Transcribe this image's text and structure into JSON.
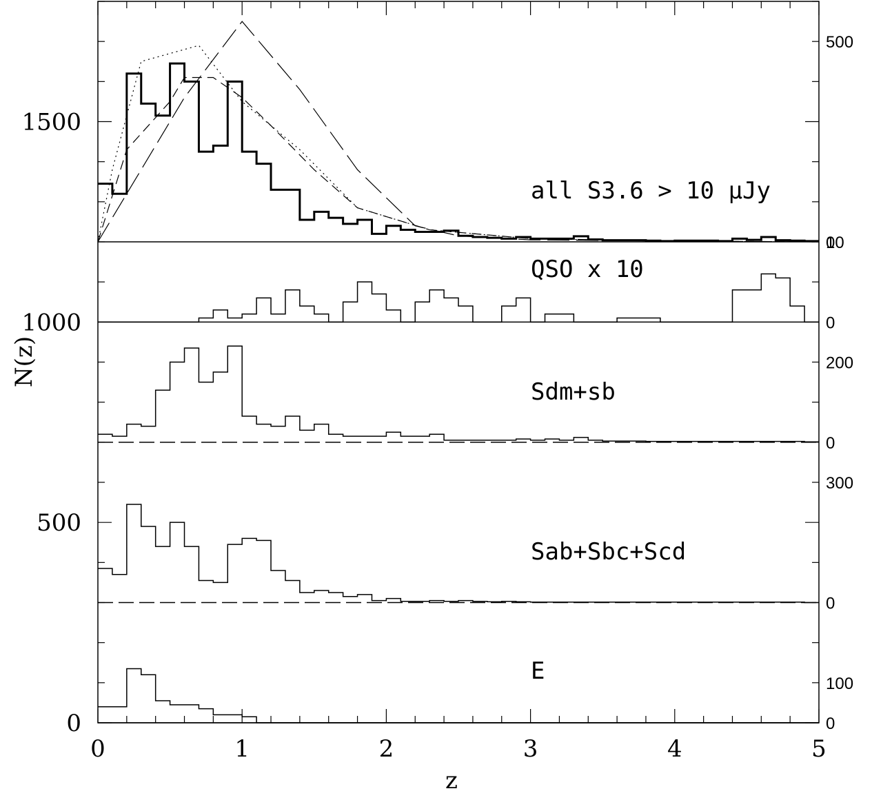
{
  "chart_data": {
    "type": "line",
    "xlabel": "z",
    "ylabel": "N(z)",
    "xlim": [
      0,
      5
    ],
    "ylim": [
      0,
      1800
    ],
    "x_ticks": [
      "0",
      "1",
      "2",
      "3",
      "4",
      "5"
    ],
    "y_ticks": [
      {
        "value": 0,
        "label": "0"
      },
      {
        "value": 500,
        "label": "500"
      },
      {
        "value": 1000,
        "label": "1000"
      },
      {
        "value": 1500,
        "label": "1500"
      }
    ],
    "bin_edges": [
      0,
      0.1,
      0.2,
      0.3,
      0.4,
      0.5,
      0.6,
      0.7,
      0.8,
      0.9,
      1.0,
      1.1,
      1.2,
      1.3,
      1.4,
      1.5,
      1.6,
      1.7,
      1.8,
      1.9,
      2.0,
      2.1,
      2.2,
      2.3,
      2.4,
      2.5,
      2.6,
      2.7,
      2.8,
      2.9,
      3.0,
      3.1,
      3.2,
      3.3,
      3.4,
      3.5,
      3.6,
      3.7,
      3.8,
      3.9,
      4.0,
      4.1,
      4.2,
      4.3,
      4.4,
      4.5,
      4.6,
      4.7,
      4.8,
      4.9,
      5.0
    ],
    "panels": [
      {
        "name": "all S3.6 > 10 μJy",
        "label": "all S3.6 > 10 μJy",
        "baseline": 1200,
        "right_ticks": [
          {
            "value": 0,
            "label": "0"
          },
          {
            "value": 500,
            "label": "500"
          }
        ],
        "histogram": [
          145,
          120,
          420,
          345,
          315,
          445,
          400,
          225,
          240,
          400,
          225,
          195,
          130,
          130,
          55,
          75,
          60,
          45,
          55,
          20,
          40,
          30,
          25,
          25,
          28,
          15,
          12,
          10,
          8,
          12,
          8,
          8,
          8,
          14,
          6,
          4,
          4,
          4,
          3,
          2,
          3,
          3,
          3,
          2,
          8,
          5,
          12,
          4,
          3,
          2
        ],
        "models": [
          {
            "style": "dotted",
            "x": [
              0,
              0.1,
              0.3,
              0.7,
              1.0,
              1.4,
              1.8,
              2.3,
              3.0,
              4.0,
              5.0
            ],
            "y": [
              0,
              180,
              450,
              490,
              350,
              230,
              85,
              30,
              8,
              1,
              0
            ]
          },
          {
            "style": "short-dashed",
            "x": [
              0,
              0.2,
              0.5,
              0.6,
              0.8,
              1.0,
              1.2,
              1.5,
              1.8,
              2.3,
              3.0,
              4.0,
              5.0
            ],
            "y": [
              0,
              230,
              350,
              410,
              410,
              360,
              290,
              180,
              85,
              30,
              8,
              2,
              0
            ]
          },
          {
            "style": "long-dashed",
            "x": [
              0,
              0.3,
              0.6,
              1.0,
              1.4,
              1.8,
              2.2,
              2.5,
              3.0,
              4.0,
              5.0
            ],
            "y": [
              0,
              180,
              360,
              550,
              380,
              180,
              40,
              15,
              5,
              2,
              0
            ]
          }
        ]
      },
      {
        "name": "QSO x 10",
        "label": "QSO x 10",
        "baseline": 1000,
        "right_ticks": [
          {
            "value": 0,
            "label": "0"
          },
          {
            "value": 10,
            "label": "10"
          }
        ],
        "scale": 20,
        "histogram": [
          0,
          0,
          0,
          0,
          0,
          0,
          0,
          0.5,
          1.5,
          0.5,
          1,
          3,
          1,
          4,
          2,
          1,
          0,
          2.5,
          5,
          3.5,
          1.5,
          0,
          2.5,
          4,
          3,
          2,
          0,
          0,
          2,
          3,
          0,
          1,
          1,
          0,
          0,
          0,
          0.5,
          0.5,
          0.5,
          0,
          0,
          0,
          0,
          0,
          4,
          4,
          6,
          5.5,
          2,
          0
        ]
      },
      {
        "name": "Sdm+sb",
        "label": "Sdm+sb",
        "baseline": 700,
        "right_ticks": [
          {
            "value": 0,
            "label": "0"
          },
          {
            "value": 200,
            "label": "200"
          }
        ],
        "histogram": [
          20,
          15,
          45,
          40,
          130,
          200,
          235,
          150,
          175,
          240,
          65,
          45,
          40,
          65,
          30,
          45,
          20,
          15,
          15,
          15,
          25,
          15,
          15,
          20,
          5,
          5,
          5,
          5,
          5,
          8,
          5,
          8,
          5,
          12,
          5,
          3,
          3,
          3,
          2,
          2,
          2,
          2,
          2,
          2,
          2,
          2,
          2,
          2,
          2,
          1
        ]
      },
      {
        "name": "Sab+Sbc+Scd",
        "label": "Sab+Sbc+Scd",
        "baseline": 300,
        "right_ticks": [
          {
            "value": 0,
            "label": "0"
          },
          {
            "value": 300,
            "label": "300"
          }
        ],
        "histogram": [
          85,
          70,
          245,
          190,
          140,
          200,
          140,
          55,
          50,
          145,
          160,
          155,
          80,
          55,
          25,
          30,
          25,
          15,
          20,
          5,
          10,
          3,
          3,
          5,
          3,
          5,
          3,
          2,
          3,
          2,
          1,
          1,
          1,
          1,
          1,
          1,
          1,
          1,
          1,
          1,
          1,
          1,
          1,
          1,
          1,
          1,
          1,
          1,
          1,
          0
        ]
      },
      {
        "name": "E",
        "label": "E",
        "baseline": 0,
        "right_ticks": [
          {
            "value": 0,
            "label": "0"
          },
          {
            "value": 100,
            "label": "100"
          }
        ],
        "histogram": [
          40,
          40,
          135,
          120,
          55,
          45,
          45,
          35,
          20,
          20,
          15,
          0,
          0,
          0,
          0,
          0,
          0,
          0,
          0,
          0,
          0,
          0,
          0,
          0,
          0,
          0,
          0,
          0,
          0,
          0,
          0,
          0,
          0,
          0,
          0,
          0,
          0,
          0,
          0,
          0,
          0,
          0,
          0,
          0,
          0,
          0,
          0,
          0,
          0,
          0
        ]
      }
    ]
  }
}
